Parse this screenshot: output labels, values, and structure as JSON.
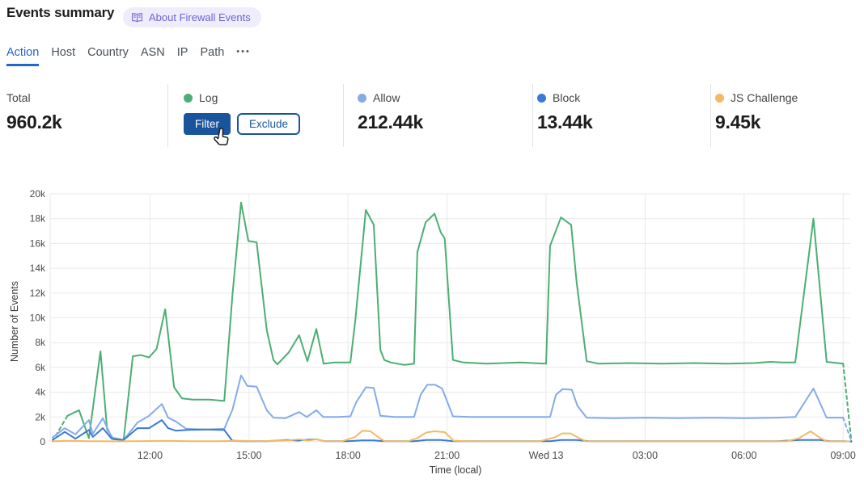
{
  "header": {
    "title": "Events summary",
    "about_badge_label": "About Firewall Events"
  },
  "tabs": {
    "items": [
      {
        "label": "Action",
        "active": true
      },
      {
        "label": "Host",
        "active": false
      },
      {
        "label": "Country",
        "active": false
      },
      {
        "label": "ASN",
        "active": false
      },
      {
        "label": "IP",
        "active": false
      },
      {
        "label": "Path",
        "active": false
      }
    ],
    "more_label": "•••"
  },
  "stats": {
    "total": {
      "label": "Total",
      "value": "960.2k"
    },
    "log": {
      "label": "Log",
      "color": "#4cae74",
      "filter_label": "Filter",
      "exclude_label": "Exclude"
    },
    "allow": {
      "label": "Allow",
      "value": "212.44k",
      "color": "#84abe8"
    },
    "block": {
      "label": "Block",
      "value": "13.44k",
      "color": "#3b79d6"
    },
    "js_challenge": {
      "label": "JS Challenge",
      "value": "9.45k",
      "color": "#f2ba63"
    }
  },
  "chart_data": {
    "type": "line",
    "xlabel": "Time (local)",
    "ylabel": "Number of Events",
    "values_unit": "thousands (k)",
    "x_unit": "hours since 09:00 local, 15-min buckets",
    "xlim": [
      0,
      24.3
    ],
    "ylim": [
      0,
      20
    ],
    "grid": true,
    "y_ticks": [
      {
        "v": 0,
        "label": "0"
      },
      {
        "v": 2,
        "label": "2k"
      },
      {
        "v": 4,
        "label": "4k"
      },
      {
        "v": 6,
        "label": "6k"
      },
      {
        "v": 8,
        "label": "8k"
      },
      {
        "v": 10,
        "label": "10k"
      },
      {
        "v": 12,
        "label": "12k"
      },
      {
        "v": 14,
        "label": "14k"
      },
      {
        "v": 16,
        "label": "16k"
      },
      {
        "v": 18,
        "label": "18k"
      },
      {
        "v": 20,
        "label": "20k"
      }
    ],
    "x_ticks": [
      {
        "t": 3,
        "label": "12:00"
      },
      {
        "t": 6,
        "label": "15:00"
      },
      {
        "t": 9,
        "label": "18:00"
      },
      {
        "t": 12,
        "label": "21:00"
      },
      {
        "t": 15,
        "label": "Wed 13"
      },
      {
        "t": 18,
        "label": "03:00"
      },
      {
        "t": 21,
        "label": "06:00"
      },
      {
        "t": 24,
        "label": "09:00"
      }
    ],
    "series": [
      {
        "name": "Log",
        "color": "#4cae74",
        "dash_start_points": 1,
        "dash_end_points": 1,
        "points": [
          [
            0.05,
            0.05
          ],
          [
            0.5,
            2.1
          ],
          [
            0.85,
            2.55
          ],
          [
            1.15,
            0.3
          ],
          [
            1.5,
            7.3
          ],
          [
            1.7,
            1.0
          ],
          [
            1.9,
            0.2
          ],
          [
            2.2,
            0.15
          ],
          [
            2.48,
            6.9
          ],
          [
            2.72,
            7.0
          ],
          [
            2.97,
            6.8
          ],
          [
            3.2,
            7.5
          ],
          [
            3.46,
            10.7
          ],
          [
            3.73,
            4.4
          ],
          [
            3.97,
            3.5
          ],
          [
            4.3,
            3.4
          ],
          [
            4.8,
            3.4
          ],
          [
            5.25,
            3.3
          ],
          [
            5.5,
            11.9
          ],
          [
            5.76,
            19.3
          ],
          [
            5.98,
            16.2
          ],
          [
            6.23,
            16.1
          ],
          [
            6.54,
            9.0
          ],
          [
            6.74,
            6.6
          ],
          [
            6.86,
            6.25
          ],
          [
            7.2,
            7.2
          ],
          [
            7.52,
            8.6
          ],
          [
            7.77,
            6.5
          ],
          [
            8.04,
            9.1
          ],
          [
            8.26,
            6.3
          ],
          [
            8.6,
            6.4
          ],
          [
            9.07,
            6.4
          ],
          [
            9.22,
            9.8
          ],
          [
            9.54,
            18.7
          ],
          [
            9.78,
            17.5
          ],
          [
            9.98,
            7.4
          ],
          [
            10.1,
            6.6
          ],
          [
            10.3,
            6.4
          ],
          [
            10.7,
            6.2
          ],
          [
            11.0,
            6.3
          ],
          [
            11.1,
            15.3
          ],
          [
            11.35,
            17.7
          ],
          [
            11.62,
            18.4
          ],
          [
            11.81,
            16.9
          ],
          [
            11.93,
            16.4
          ],
          [
            12.18,
            6.6
          ],
          [
            12.5,
            6.4
          ],
          [
            13.2,
            6.3
          ],
          [
            14.2,
            6.4
          ],
          [
            15.0,
            6.3
          ],
          [
            15.12,
            15.8
          ],
          [
            15.45,
            18.1
          ],
          [
            15.76,
            17.5
          ],
          [
            15.93,
            12.8
          ],
          [
            16.23,
            6.5
          ],
          [
            16.6,
            6.3
          ],
          [
            17.5,
            6.35
          ],
          [
            18.5,
            6.3
          ],
          [
            19.5,
            6.35
          ],
          [
            20.5,
            6.3
          ],
          [
            21.3,
            6.35
          ],
          [
            21.8,
            6.45
          ],
          [
            22.15,
            6.4
          ],
          [
            22.55,
            6.4
          ],
          [
            23.1,
            18.0
          ],
          [
            23.5,
            6.45
          ],
          [
            24.0,
            6.3
          ],
          [
            24.25,
            0.05
          ]
        ]
      },
      {
        "name": "Allow",
        "color": "#84abe8",
        "dash_start_points": 0,
        "dash_end_points": 1,
        "points": [
          [
            0.05,
            0.35
          ],
          [
            0.42,
            1.1
          ],
          [
            0.74,
            0.6
          ],
          [
            1.15,
            1.75
          ],
          [
            1.27,
            0.65
          ],
          [
            1.57,
            1.9
          ],
          [
            1.84,
            0.35
          ],
          [
            2.2,
            0.15
          ],
          [
            2.62,
            1.55
          ],
          [
            2.97,
            2.1
          ],
          [
            3.36,
            3.05
          ],
          [
            3.55,
            1.95
          ],
          [
            3.78,
            1.65
          ],
          [
            4.1,
            1.05
          ],
          [
            4.7,
            1.0
          ],
          [
            5.25,
            1.05
          ],
          [
            5.5,
            2.6
          ],
          [
            5.76,
            5.35
          ],
          [
            5.95,
            4.5
          ],
          [
            6.23,
            4.45
          ],
          [
            6.54,
            2.55
          ],
          [
            6.74,
            1.95
          ],
          [
            7.1,
            1.9
          ],
          [
            7.52,
            2.4
          ],
          [
            7.75,
            2.0
          ],
          [
            8.04,
            2.55
          ],
          [
            8.25,
            2.0
          ],
          [
            8.7,
            2.0
          ],
          [
            9.07,
            2.05
          ],
          [
            9.25,
            3.2
          ],
          [
            9.54,
            4.4
          ],
          [
            9.78,
            4.35
          ],
          [
            9.98,
            2.1
          ],
          [
            10.4,
            2.0
          ],
          [
            11.0,
            2.0
          ],
          [
            11.2,
            3.8
          ],
          [
            11.4,
            4.6
          ],
          [
            11.64,
            4.6
          ],
          [
            11.85,
            4.3
          ],
          [
            12.18,
            2.05
          ],
          [
            12.7,
            2.0
          ],
          [
            13.5,
            2.0
          ],
          [
            14.5,
            2.0
          ],
          [
            15.12,
            2.0
          ],
          [
            15.3,
            3.8
          ],
          [
            15.5,
            4.25
          ],
          [
            15.78,
            4.2
          ],
          [
            15.95,
            2.9
          ],
          [
            16.23,
            1.95
          ],
          [
            17.0,
            1.9
          ],
          [
            18.0,
            1.95
          ],
          [
            19.0,
            1.9
          ],
          [
            20.0,
            1.95
          ],
          [
            21.0,
            1.9
          ],
          [
            22.0,
            1.95
          ],
          [
            22.55,
            2.0
          ],
          [
            23.1,
            4.3
          ],
          [
            23.5,
            1.95
          ],
          [
            24.0,
            1.95
          ],
          [
            24.25,
            0.05
          ]
        ]
      },
      {
        "name": "Block",
        "color": "#3b79d6",
        "dash_start_points": 0,
        "dash_end_points": 1,
        "points": [
          [
            0.05,
            0.15
          ],
          [
            0.42,
            0.8
          ],
          [
            0.74,
            0.25
          ],
          [
            1.15,
            0.95
          ],
          [
            1.27,
            0.4
          ],
          [
            1.57,
            1.1
          ],
          [
            1.84,
            0.25
          ],
          [
            2.2,
            0.15
          ],
          [
            2.62,
            1.1
          ],
          [
            2.97,
            1.1
          ],
          [
            3.36,
            1.75
          ],
          [
            3.55,
            1.1
          ],
          [
            3.78,
            0.9
          ],
          [
            4.1,
            0.95
          ],
          [
            4.7,
            1.0
          ],
          [
            5.25,
            0.95
          ],
          [
            5.49,
            0.1
          ],
          [
            5.8,
            0.05
          ],
          [
            6.5,
            0.05
          ],
          [
            7.16,
            0.15
          ],
          [
            7.5,
            0.1
          ],
          [
            7.65,
            0.15
          ],
          [
            8.04,
            0.2
          ],
          [
            8.3,
            0.05
          ],
          [
            9.0,
            0.05
          ],
          [
            9.4,
            0.12
          ],
          [
            9.78,
            0.12
          ],
          [
            10.1,
            0.05
          ],
          [
            11.0,
            0.05
          ],
          [
            11.37,
            0.15
          ],
          [
            11.81,
            0.15
          ],
          [
            12.2,
            0.05
          ],
          [
            13.0,
            0.05
          ],
          [
            14.0,
            0.05
          ],
          [
            15.12,
            0.05
          ],
          [
            15.45,
            0.15
          ],
          [
            15.93,
            0.15
          ],
          [
            16.3,
            0.05
          ],
          [
            17.5,
            0.05
          ],
          [
            19.0,
            0.05
          ],
          [
            20.5,
            0.05
          ],
          [
            22.0,
            0.05
          ],
          [
            22.7,
            0.15
          ],
          [
            23.3,
            0.15
          ],
          [
            23.6,
            0.05
          ],
          [
            24.0,
            0.05
          ],
          [
            24.25,
            0.02
          ]
        ]
      },
      {
        "name": "JS Challenge",
        "color": "#f2ba63",
        "dash_start_points": 0,
        "dash_end_points": 1,
        "points": [
          [
            0.05,
            0.05
          ],
          [
            0.6,
            0.08
          ],
          [
            1.2,
            0.05
          ],
          [
            2.0,
            0.04
          ],
          [
            2.8,
            0.06
          ],
          [
            3.5,
            0.08
          ],
          [
            4.2,
            0.05
          ],
          [
            5.0,
            0.05
          ],
          [
            5.76,
            0.08
          ],
          [
            6.3,
            0.05
          ],
          [
            7.2,
            0.12
          ],
          [
            7.52,
            0.2
          ],
          [
            7.8,
            0.1
          ],
          [
            8.04,
            0.2
          ],
          [
            8.3,
            0.05
          ],
          [
            8.8,
            0.04
          ],
          [
            9.19,
            0.35
          ],
          [
            9.44,
            0.9
          ],
          [
            9.68,
            0.85
          ],
          [
            9.93,
            0.35
          ],
          [
            10.1,
            0.06
          ],
          [
            10.8,
            0.04
          ],
          [
            11.1,
            0.3
          ],
          [
            11.37,
            0.75
          ],
          [
            11.62,
            0.85
          ],
          [
            11.93,
            0.78
          ],
          [
            12.2,
            0.08
          ],
          [
            12.8,
            0.04
          ],
          [
            13.8,
            0.04
          ],
          [
            14.8,
            0.04
          ],
          [
            15.25,
            0.35
          ],
          [
            15.49,
            0.68
          ],
          [
            15.74,
            0.68
          ],
          [
            16.0,
            0.3
          ],
          [
            16.2,
            0.05
          ],
          [
            17.0,
            0.04
          ],
          [
            18.5,
            0.04
          ],
          [
            20.0,
            0.04
          ],
          [
            21.5,
            0.04
          ],
          [
            22.3,
            0.04
          ],
          [
            22.67,
            0.3
          ],
          [
            23.01,
            0.85
          ],
          [
            23.28,
            0.35
          ],
          [
            23.5,
            0.04
          ],
          [
            24.1,
            0.04
          ],
          [
            24.25,
            0.02
          ]
        ]
      }
    ]
  }
}
